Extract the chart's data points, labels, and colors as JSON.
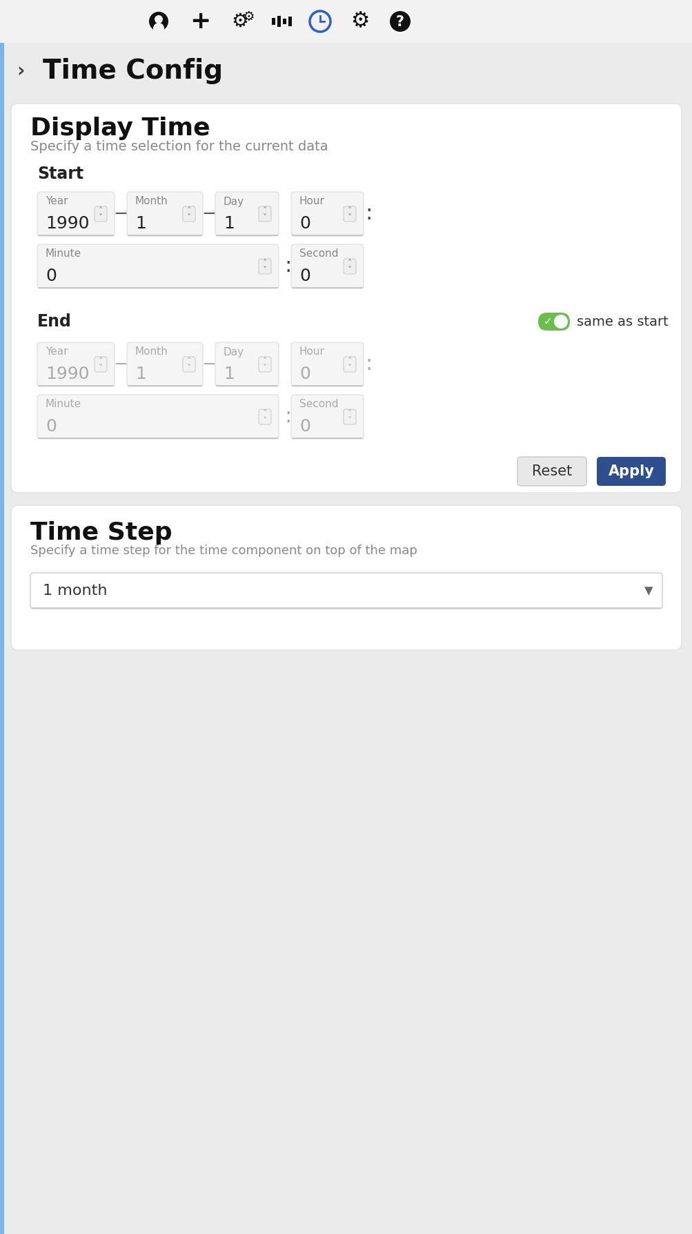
{
  "bg_color": "#ebebeb",
  "card_color": "#ffffff",
  "card_border": "#e0e0e0",
  "toolbar_bg": "#f2f2f2",
  "title": "Time Config",
  "section1_title": "Display Time",
  "section1_subtitle": "Specify a time selection for the current data",
  "start_label": "Start",
  "end_label": "End",
  "same_as_start_text": "same as start",
  "start_year": "1990",
  "start_month": "1",
  "start_day": "1",
  "start_hour": "0",
  "start_minute": "0",
  "start_second": "0",
  "end_year": "1990",
  "end_month": "1",
  "end_day": "1",
  "end_hour": "0",
  "end_minute": "0",
  "end_second": "0",
  "reset_btn_color": "#e8e8e8",
  "apply_btn_color": "#2d4e8f",
  "apply_text_color": "#ffffff",
  "reset_text_color": "#333333",
  "section2_title": "Time Step",
  "section2_subtitle": "Specify a time step for the time component on top of the map",
  "timestep_value": "1 month",
  "toggle_on_color": "#6abf4b",
  "sidebar_accent": "#7ab3e8",
  "disabled_text": "#aaaaaa",
  "label_color": "#888888",
  "field_bg_active": "#f4f4f4",
  "field_bg_disabled": "#f5f5f5"
}
